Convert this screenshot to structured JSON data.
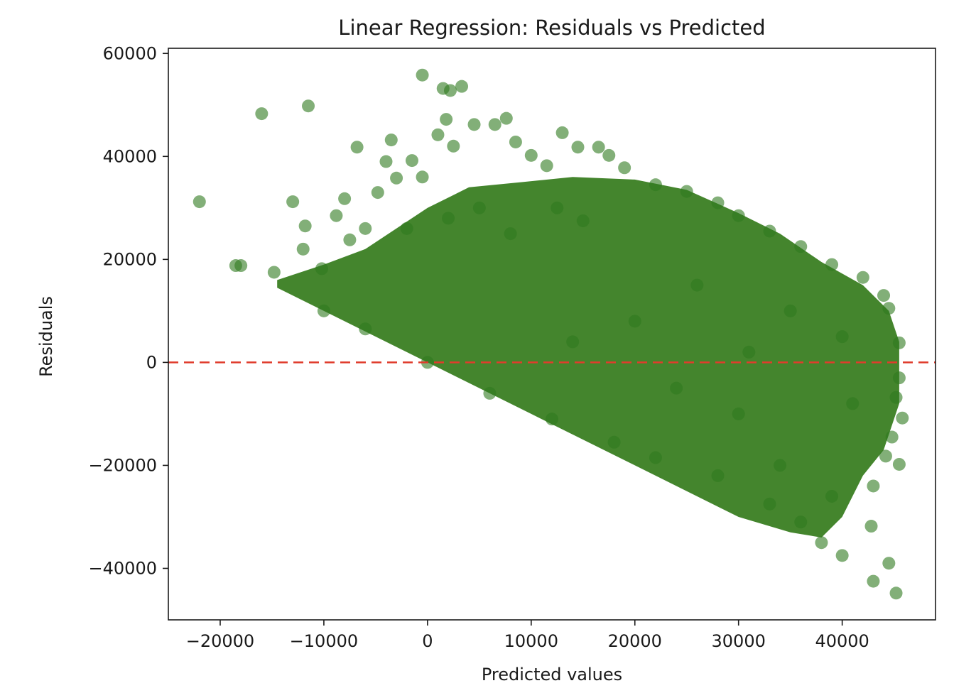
{
  "chart_data": {
    "type": "scatter",
    "title": "Linear Regression: Residuals vs Predicted",
    "xlabel": "Predicted values",
    "ylabel": "Residuals",
    "xlim": [
      -25000,
      49000
    ],
    "ylim": [
      -50000,
      61000
    ],
    "xticks": [
      -20000,
      -10000,
      0,
      10000,
      20000,
      30000,
      40000
    ],
    "xtick_labels": [
      "−20000",
      "−10000",
      "0",
      "10000",
      "20000",
      "30000",
      "40000"
    ],
    "yticks": [
      -40000,
      -20000,
      0,
      20000,
      40000,
      60000
    ],
    "ytick_labels": [
      "−40000",
      "−20000",
      "0",
      "20000",
      "40000",
      "60000"
    ],
    "grid": false,
    "point_color": "#2e7a1e",
    "point_alpha": 0.6,
    "reference_line": {
      "y": 0,
      "style": "dashed",
      "color": "#e03c2c"
    },
    "series": [
      {
        "points": [
          [
            -22000,
            31200
          ],
          [
            -18500,
            18800
          ],
          [
            -18000,
            18800
          ],
          [
            -16000,
            48300
          ],
          [
            -14800,
            17500
          ],
          [
            -13000,
            31200
          ],
          [
            -11500,
            49800
          ],
          [
            -11800,
            26500
          ],
          [
            -12000,
            22000
          ],
          [
            -10200,
            18200
          ],
          [
            -8800,
            28500
          ],
          [
            -8000,
            31800
          ],
          [
            -7500,
            23800
          ],
          [
            -6800,
            41800
          ],
          [
            -6000,
            26000
          ],
          [
            -4800,
            33000
          ],
          [
            -4000,
            39000
          ],
          [
            -3500,
            43200
          ],
          [
            -3000,
            35800
          ],
          [
            -1500,
            39200
          ],
          [
            -500,
            36000
          ],
          [
            -500,
            55800
          ],
          [
            1500,
            53200
          ],
          [
            2200,
            52800
          ],
          [
            3300,
            53600
          ],
          [
            1800,
            47200
          ],
          [
            1000,
            44200
          ],
          [
            2500,
            42000
          ],
          [
            4500,
            46200
          ],
          [
            6500,
            46200
          ],
          [
            7600,
            47400
          ],
          [
            8500,
            42800
          ],
          [
            10000,
            40200
          ],
          [
            11500,
            38200
          ],
          [
            13000,
            44600
          ],
          [
            14500,
            41800
          ],
          [
            16500,
            41800
          ],
          [
            17500,
            40200
          ],
          [
            19000,
            37800
          ],
          [
            12500,
            30000
          ],
          [
            15000,
            27500
          ],
          [
            8000,
            25000
          ],
          [
            5000,
            30000
          ],
          [
            2000,
            28000
          ],
          [
            -2000,
            26000
          ],
          [
            22000,
            34500
          ],
          [
            25000,
            33200
          ],
          [
            28000,
            31000
          ],
          [
            30000,
            28500
          ],
          [
            33000,
            25500
          ],
          [
            36000,
            22500
          ],
          [
            39000,
            19000
          ],
          [
            42000,
            16500
          ],
          [
            44000,
            13000
          ],
          [
            44500,
            10500
          ],
          [
            45500,
            3800
          ],
          [
            45500,
            -3000
          ],
          [
            45200,
            -6800
          ],
          [
            45800,
            -10800
          ],
          [
            44800,
            -14500
          ],
          [
            45500,
            -19800
          ],
          [
            44200,
            -18200
          ],
          [
            43000,
            -24000
          ],
          [
            42800,
            -31800
          ],
          [
            44500,
            -39000
          ],
          [
            45200,
            -44800
          ],
          [
            43000,
            -42500
          ],
          [
            40000,
            -37500
          ],
          [
            36000,
            -31000
          ],
          [
            38000,
            -35000
          ],
          [
            33000,
            -27500
          ],
          [
            28000,
            -22000
          ],
          [
            22000,
            -18500
          ],
          [
            18000,
            -15500
          ],
          [
            12000,
            -11000
          ],
          [
            6000,
            -6000
          ],
          [
            0,
            0
          ],
          [
            -6000,
            6500
          ],
          [
            -10000,
            10000
          ],
          [
            30000,
            -10000
          ],
          [
            34000,
            -20000
          ],
          [
            39000,
            -26000
          ],
          [
            41000,
            -8000
          ],
          [
            40000,
            5000
          ],
          [
            35000,
            10000
          ],
          [
            26000,
            15000
          ],
          [
            20000,
            8000
          ],
          [
            14000,
            4000
          ],
          [
            24000,
            -5000
          ],
          [
            31000,
            2000
          ]
        ]
      }
    ]
  }
}
